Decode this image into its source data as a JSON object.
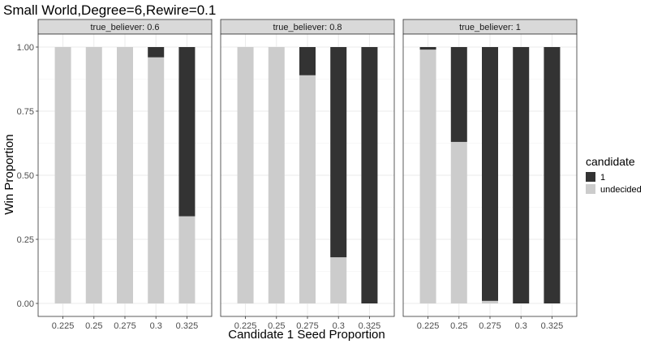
{
  "chart_data": {
    "type": "bar",
    "stacked": true,
    "title": "Small World,Degree=6,Rewire=0.1",
    "xlabel": "Candidate 1 Seed Proportion",
    "ylabel": "Win Proportion",
    "ylim": [
      0,
      1
    ],
    "y_ticks": [
      "0.00",
      "0.25",
      "0.50",
      "0.75",
      "1.00"
    ],
    "y_tick_values": [
      0,
      0.25,
      0.5,
      0.75,
      1.0
    ],
    "categories": [
      "0.225",
      "0.25",
      "0.275",
      "0.3",
      "0.325"
    ],
    "grid": true,
    "legend": {
      "title": "candidate",
      "placement": "right",
      "items": [
        {
          "label": "1",
          "color": "#333333"
        },
        {
          "label": "undecided",
          "color": "#cccccc"
        }
      ]
    },
    "panels": [
      {
        "strip_label": "true_believer: 0.6",
        "series": [
          {
            "name": "1",
            "values": [
              0,
              0,
              0,
              0.04,
              0.66
            ]
          },
          {
            "name": "undecided",
            "values": [
              1,
              1,
              1,
              0.96,
              0.34
            ]
          }
        ]
      },
      {
        "strip_label": "true_believer: 0.8",
        "series": [
          {
            "name": "1",
            "values": [
              0,
              0,
              0.11,
              0.82,
              1.0
            ]
          },
          {
            "name": "undecided",
            "values": [
              1,
              1,
              0.89,
              0.18,
              0
            ]
          }
        ]
      },
      {
        "strip_label": "true_believer: 1",
        "series": [
          {
            "name": "1",
            "values": [
              0.01,
              0.37,
              0.99,
              1.0,
              1.0
            ]
          },
          {
            "name": "undecided",
            "values": [
              0.99,
              0.63,
              0.01,
              0,
              0
            ]
          }
        ]
      }
    ]
  }
}
